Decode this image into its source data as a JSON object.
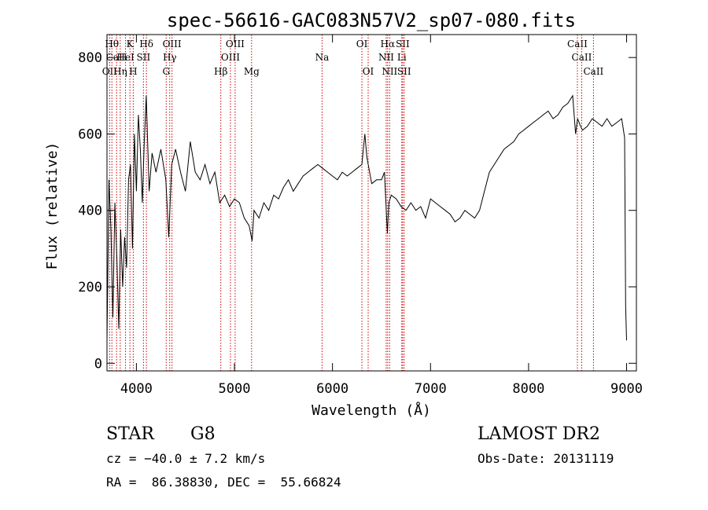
{
  "chart_data": {
    "type": "line",
    "title": "spec-56616-GAC083N57V2_sp07-080.fits",
    "xlabel": "Wavelength (Å)",
    "ylabel": "Flux (relative)",
    "xlim": [
      3700,
      9100
    ],
    "ylim": [
      -20,
      860
    ],
    "x_ticks": [
      4000,
      5000,
      6000,
      7000,
      8000,
      9000
    ],
    "y_ticks": [
      0,
      200,
      400,
      600,
      800
    ],
    "grid": false,
    "series": [
      {
        "x": [
          3700,
          3720,
          3740,
          3760,
          3780,
          3800,
          3820,
          3840,
          3860,
          3880,
          3900,
          3920,
          3940,
          3960,
          3980,
          4000,
          4020,
          4040,
          4060,
          4080,
          4100,
          4130,
          4160,
          4200,
          4250,
          4300,
          4330,
          4360,
          4400,
          4450,
          4500,
          4550,
          4600,
          4650,
          4700,
          4750,
          4800,
          4850,
          4900,
          4950,
          5000,
          5050,
          5100,
          5150,
          5180,
          5200,
          5250,
          5300,
          5350,
          5400,
          5450,
          5500,
          5550,
          5600,
          5650,
          5700,
          5750,
          5800,
          5850,
          5900,
          5950,
          6000,
          6050,
          6100,
          6150,
          6200,
          6250,
          6300,
          6330,
          6350,
          6400,
          6450,
          6500,
          6530,
          6560,
          6575,
          6600,
          6650,
          6700,
          6750,
          6800,
          6850,
          6900,
          6950,
          7000,
          7050,
          7100,
          7150,
          7200,
          7250,
          7300,
          7350,
          7400,
          7450,
          7500,
          7550,
          7600,
          7650,
          7700,
          7750,
          7800,
          7850,
          7900,
          7950,
          8000,
          8050,
          8100,
          8150,
          8200,
          8250,
          8300,
          8350,
          8400,
          8450,
          8480,
          8500,
          8530,
          8550,
          8600,
          8650,
          8700,
          8750,
          8800,
          8850,
          8900,
          8950,
          8980,
          8990,
          9000
        ],
        "y": [
          60,
          480,
          350,
          120,
          420,
          280,
          90,
          350,
          200,
          330,
          250,
          480,
          520,
          300,
          600,
          450,
          650,
          560,
          420,
          580,
          700,
          450,
          550,
          500,
          560,
          480,
          330,
          520,
          560,
          500,
          450,
          580,
          500,
          480,
          520,
          470,
          500,
          420,
          440,
          410,
          430,
          420,
          380,
          360,
          320,
          400,
          380,
          420,
          400,
          440,
          430,
          460,
          480,
          450,
          470,
          490,
          500,
          510,
          520,
          510,
          500,
          490,
          480,
          500,
          490,
          500,
          510,
          520,
          600,
          540,
          470,
          480,
          480,
          500,
          340,
          420,
          440,
          430,
          410,
          400,
          420,
          400,
          410,
          380,
          430,
          420,
          410,
          400,
          390,
          370,
          380,
          400,
          390,
          380,
          400,
          450,
          500,
          520,
          540,
          560,
          570,
          580,
          600,
          610,
          620,
          630,
          640,
          650,
          660,
          640,
          650,
          670,
          680,
          700,
          600,
          640,
          620,
          610,
          620,
          640,
          630,
          620,
          640,
          620,
          630,
          640,
          590,
          150,
          60
        ]
      }
    ],
    "line_markers": [
      {
        "x": 3727,
        "label": "OII",
        "row": 3
      },
      {
        "x": 3750,
        "label": "Hθ",
        "row": 1
      },
      {
        "x": 3798,
        "label": "CaH",
        "row": 2
      },
      {
        "x": 3835,
        "label": "Hη",
        "row": 3
      },
      {
        "x": 3889,
        "label": "HeI",
        "row": 2
      },
      {
        "x": 3934,
        "label": "K",
        "row": 1
      },
      {
        "x": 3968,
        "label": "H",
        "row": 3
      },
      {
        "x": 4072,
        "label": "SII",
        "row": 2
      },
      {
        "x": 4102,
        "label": "Hδ",
        "row": 1
      },
      {
        "x": 4304,
        "label": "G",
        "row": 3
      },
      {
        "x": 4340,
        "label": "Hγ",
        "row": 2
      },
      {
        "x": 4363,
        "label": "OIII",
        "row": 1
      },
      {
        "x": 4861,
        "label": "Hβ",
        "row": 3
      },
      {
        "x": 4959,
        "label": "OIII",
        "row": 2
      },
      {
        "x": 5007,
        "label": "OIII",
        "row": 1
      },
      {
        "x": 5175,
        "label": "Mg",
        "row": 3
      },
      {
        "x": 5894,
        "label": "Na",
        "row": 2
      },
      {
        "x": 6300,
        "label": "OI",
        "row": 1
      },
      {
        "x": 6364,
        "label": "OI",
        "row": 3
      },
      {
        "x": 6548,
        "label": "NII",
        "row": 2
      },
      {
        "x": 6563,
        "label": "Hα",
        "row": 1
      },
      {
        "x": 6583,
        "label": "NII",
        "row": 3
      },
      {
        "x": 6707,
        "label": "Li",
        "row": 2
      },
      {
        "x": 6716,
        "label": "SII",
        "row": 1
      },
      {
        "x": 6731,
        "label": "SII",
        "row": 3
      },
      {
        "x": 8498,
        "label": "CaII",
        "row": 1
      },
      {
        "x": 8542,
        "label": "CaII",
        "row": 2
      },
      {
        "x": 8662,
        "label": "CaII",
        "row": 3
      }
    ],
    "marker_color": "#cc0000",
    "line_color": "#000000"
  },
  "info": {
    "object_class": "STAR",
    "subclass": "G8",
    "survey": "LAMOST DR2",
    "redshift": "cz = −40.0 ± 7.2 km/s",
    "obs_date": "Obs-Date: 20131119",
    "coords": "RA =  86.38830, DEC =  55.66824"
  }
}
